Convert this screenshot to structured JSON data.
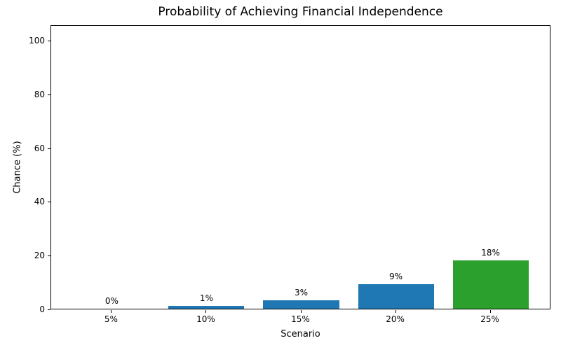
{
  "chart_data": {
    "type": "bar",
    "title": "Probability of Achieving Financial Independence",
    "xlabel": "Scenario",
    "ylabel": "Chance (%)",
    "categories": [
      "5%",
      "10%",
      "15%",
      "20%",
      "25%"
    ],
    "values": [
      0,
      1,
      3,
      9,
      18
    ],
    "bar_labels": [
      "0%",
      "1%",
      "3%",
      "9%",
      "18%"
    ],
    "bar_colors": [
      "#1f77b4",
      "#1f77b4",
      "#1f77b4",
      "#1f77b4",
      "#2ca02c"
    ],
    "ylim": [
      0,
      105.7
    ],
    "yticks": [
      0,
      20,
      40,
      60,
      80,
      100
    ],
    "grid": false,
    "legend": null,
    "layout": {
      "background": "#ffffff",
      "spine_color": "#000000",
      "text_color": "#000000",
      "bar_width_fraction": 0.1515,
      "bar_center_fractions": [
        0.1212,
        0.3106,
        0.5,
        0.6894,
        0.8788
      ]
    }
  }
}
